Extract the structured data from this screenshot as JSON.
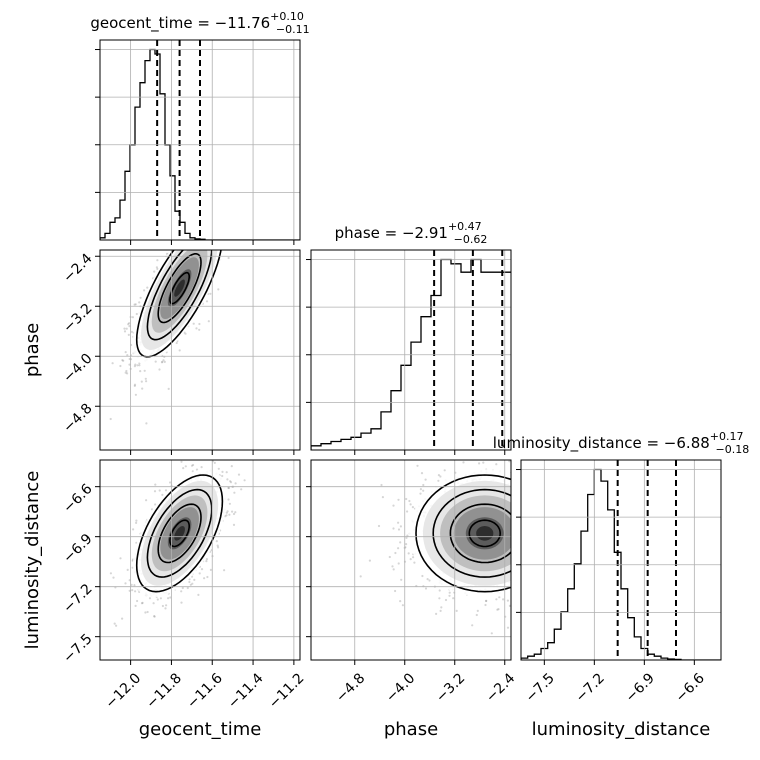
{
  "chart_data": {
    "type": "corner",
    "parameters": [
      {
        "name": "geocent_time",
        "median": "−11.76",
        "plus": "+0.10",
        "minus": "−0.11",
        "range": [
          -12.15,
          -11.17
        ],
        "ticks": [
          -12.0,
          -11.8,
          -11.6,
          -11.4,
          -11.2
        ],
        "tick_labels": [
          "−12.0",
          "−11.8",
          "−11.6",
          "−11.4",
          "−11.2"
        ],
        "quantiles": [
          -11.87,
          -11.76,
          -11.66
        ],
        "hist": {
          "edges_start": -12.15,
          "bin_width": 0.0245,
          "counts": [
            0.01,
            0.03,
            0.08,
            0.1,
            0.18,
            0.31,
            0.43,
            0.6,
            0.71,
            0.81,
            0.86,
            0.84,
            0.66,
            0.43,
            0.29,
            0.13,
            0.08,
            0.03,
            0.01,
            0.005,
            0.003,
            0.0,
            0.0,
            0.0,
            0.0,
            0.0,
            0.0,
            0.0,
            0.0,
            0.0,
            0.0,
            0.0,
            0.0,
            0.0,
            0.0,
            0.0,
            0.0,
            0.0,
            0.0,
            0.0
          ]
        }
      },
      {
        "name": "phase",
        "median": "−2.91",
        "plus": "+0.47",
        "minus": "−0.62",
        "range": [
          -5.5,
          -2.3
        ],
        "ticks": [
          -4.8,
          -4.0,
          -3.2,
          -2.4
        ],
        "tick_labels": [
          "−4.8",
          "−4.0",
          "−3.2",
          "−2.4"
        ],
        "quantiles": [
          -3.53,
          -2.91,
          -2.44
        ],
        "hist": {
          "edges_start": -5.5,
          "bin_width": 0.16,
          "counts": [
            0.02,
            0.03,
            0.04,
            0.05,
            0.06,
            0.08,
            0.1,
            0.18,
            0.28,
            0.4,
            0.51,
            0.63,
            0.73,
            0.9,
            0.88,
            0.84,
            0.9,
            0.84,
            0.84,
            0.84
          ]
        }
      },
      {
        "name": "luminosity_distance",
        "median": "−6.88",
        "plus": "+0.17",
        "minus": "−0.18",
        "range": [
          -7.64,
          -6.44
        ],
        "ticks": [
          -7.5,
          -7.2,
          -6.9,
          -6.6
        ],
        "tick_labels": [
          "−7.5",
          "−7.2",
          "−6.9",
          "−6.6"
        ],
        "quantiles": [
          -7.06,
          -6.88,
          -6.71
        ],
        "hist": {
          "edges_start": -7.64,
          "bin_width": 0.04,
          "counts": [
            0.01,
            0.02,
            0.03,
            0.06,
            0.09,
            0.16,
            0.25,
            0.37,
            0.5,
            0.67,
            0.86,
            0.99,
            0.93,
            0.78,
            0.56,
            0.37,
            0.22,
            0.12,
            0.06,
            0.03,
            0.02,
            0.01,
            0.005,
            0.003,
            0.0,
            0.0,
            0.0,
            0.0,
            0.0,
            0.0
          ]
        }
      }
    ],
    "pairs": [
      {
        "x": 0,
        "y": 1,
        "center": [
          -11.76,
          -2.91
        ],
        "sd": [
          0.105,
          0.55
        ],
        "rho": 0.75
      },
      {
        "x": 0,
        "y": 2,
        "center": [
          -11.76,
          -6.88
        ],
        "sd": [
          0.105,
          0.175
        ],
        "rho": 0.55
      },
      {
        "x": 1,
        "y": 2,
        "center": [
          -2.72,
          -6.88
        ],
        "sd": [
          0.55,
          0.175
        ],
        "rho": 0.0
      }
    ],
    "grid": true,
    "legend": "none"
  }
}
